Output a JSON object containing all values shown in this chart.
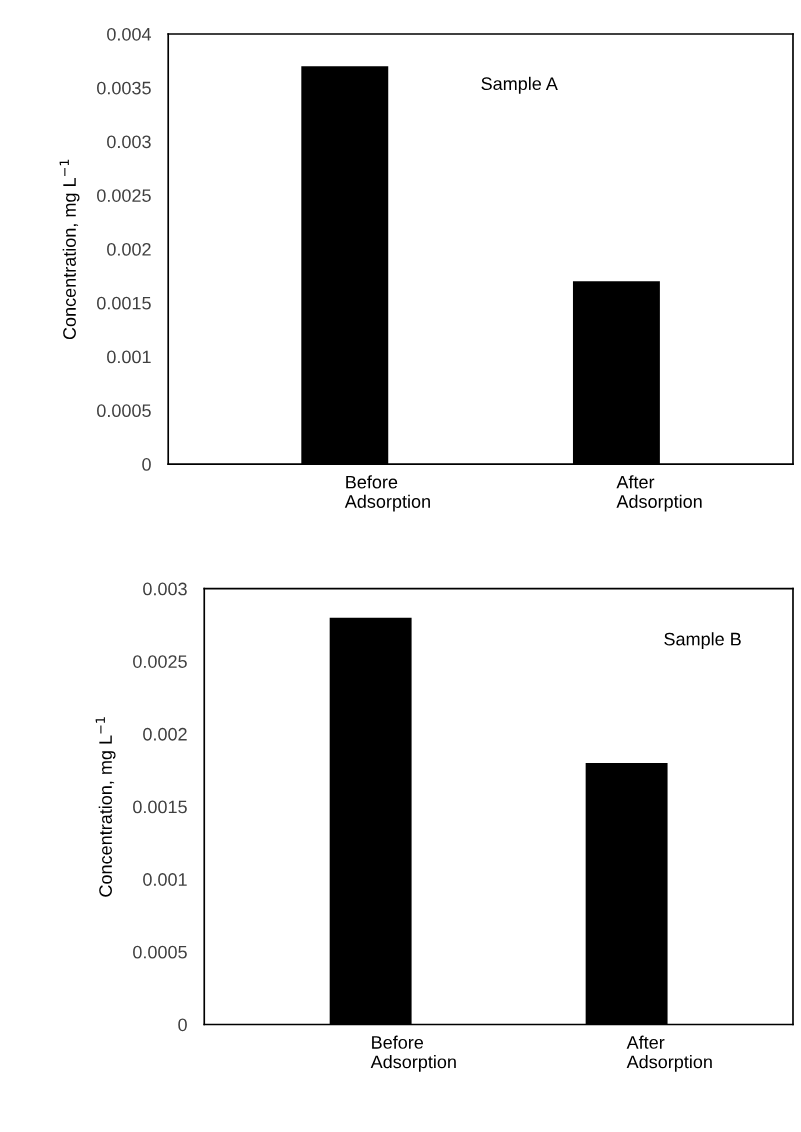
{
  "chart_data": [
    {
      "type": "bar",
      "categories": [
        "Before\nAdsorption",
        "After\nAdsorption"
      ],
      "values": [
        0.0037,
        0.0017
      ],
      "color": "#000000",
      "ylabel": "Concentration, mg L$^{−1}$",
      "ylim": [
        0,
        0.004
      ],
      "yticks": [
        0,
        0.0005,
        0.001,
        0.0015,
        0.002,
        0.0025,
        0.003,
        0.0035,
        0.004
      ],
      "annotations": [
        "Sample A"
      ],
      "grid": false,
      "legend": false
    },
    {
      "type": "bar",
      "categories": [
        "Before\nAdsorption",
        "After\nAdsorption"
      ],
      "values": [
        0.0028,
        0.0018
      ],
      "color": "#000000",
      "ylabel": "Concentration, mg L$^{−1}$",
      "ylim": [
        0,
        0.003
      ],
      "yticks": [
        0,
        0.0005,
        0.001,
        0.0015,
        0.002,
        0.0025,
        0.003
      ],
      "annotations": [
        "Sample B"
      ],
      "grid": false,
      "legend": false
    }
  ]
}
